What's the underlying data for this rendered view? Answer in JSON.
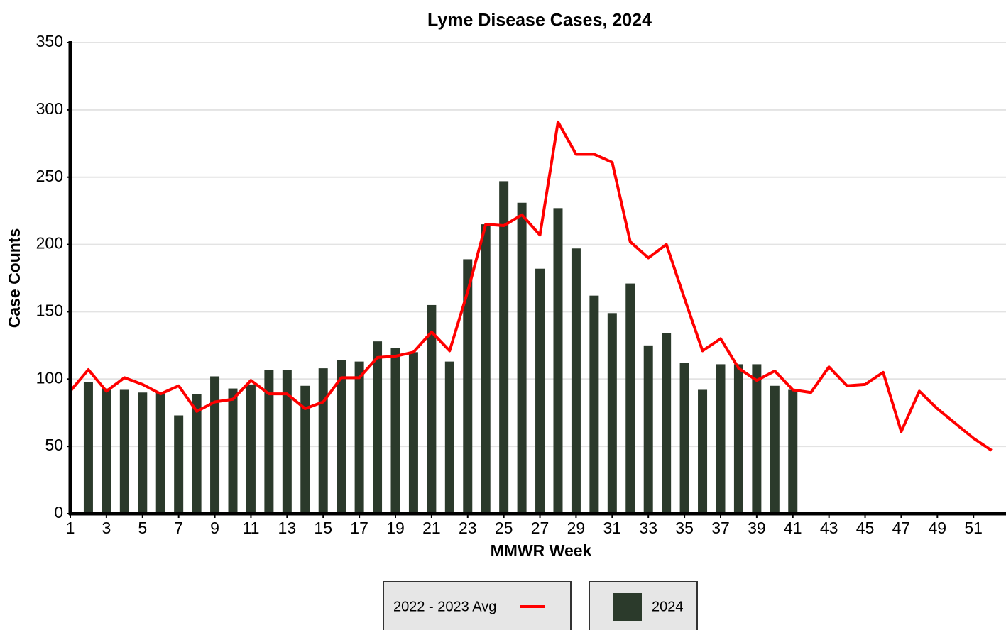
{
  "chart_data": {
    "type": "bar",
    "title": "Lyme Disease Cases, 2024",
    "x_label": "MMWR Week",
    "y_label": "Case Counts",
    "x": [
      1,
      2,
      3,
      4,
      5,
      6,
      7,
      8,
      9,
      10,
      11,
      12,
      13,
      14,
      15,
      16,
      17,
      18,
      19,
      20,
      21,
      22,
      23,
      24,
      25,
      26,
      27,
      28,
      29,
      30,
      31,
      32,
      33,
      34,
      35,
      36,
      37,
      38,
      39,
      40,
      41,
      42,
      43,
      44,
      45,
      46,
      47,
      48,
      49,
      50,
      51,
      52
    ],
    "series": [
      {
        "name": "2022 - 2023 Avg",
        "type": "line",
        "color": "#ff0000",
        "values": [
          91,
          107,
          91,
          101,
          96,
          89,
          95,
          76,
          83,
          85,
          99,
          89,
          89,
          78,
          83,
          101,
          101,
          116,
          117,
          120,
          135,
          121,
          165,
          215,
          214,
          222,
          207,
          291,
          267,
          267,
          261,
          202,
          190,
          200,
          160,
          121,
          130,
          108,
          99,
          106,
          92,
          90,
          109,
          95,
          96,
          105,
          61,
          91,
          78,
          67,
          56,
          47
        ]
      },
      {
        "name": "2024",
        "type": "bar",
        "color": "#2b3a2b",
        "values": [
          null,
          98,
          93,
          92,
          90,
          90,
          73,
          89,
          102,
          93,
          96,
          107,
          107,
          95,
          108,
          114,
          113,
          128,
          123,
          120,
          155,
          113,
          189,
          215,
          247,
          231,
          182,
          227,
          197,
          162,
          149,
          171,
          125,
          134,
          112,
          92,
          111,
          111,
          111,
          95,
          92,
          null,
          null,
          null,
          null,
          null,
          null,
          null,
          null,
          null,
          null,
          null
        ]
      }
    ],
    "xlim": [
      1,
      52.8
    ],
    "xticks": [
      1,
      3,
      5,
      7,
      9,
      11,
      13,
      15,
      17,
      19,
      21,
      23,
      25,
      27,
      29,
      31,
      33,
      35,
      37,
      39,
      41,
      43,
      45,
      47,
      49,
      51
    ],
    "ylim": [
      0,
      350
    ],
    "yticks": [
      0,
      50,
      100,
      150,
      200,
      250,
      300,
      350
    ],
    "grid": true
  }
}
